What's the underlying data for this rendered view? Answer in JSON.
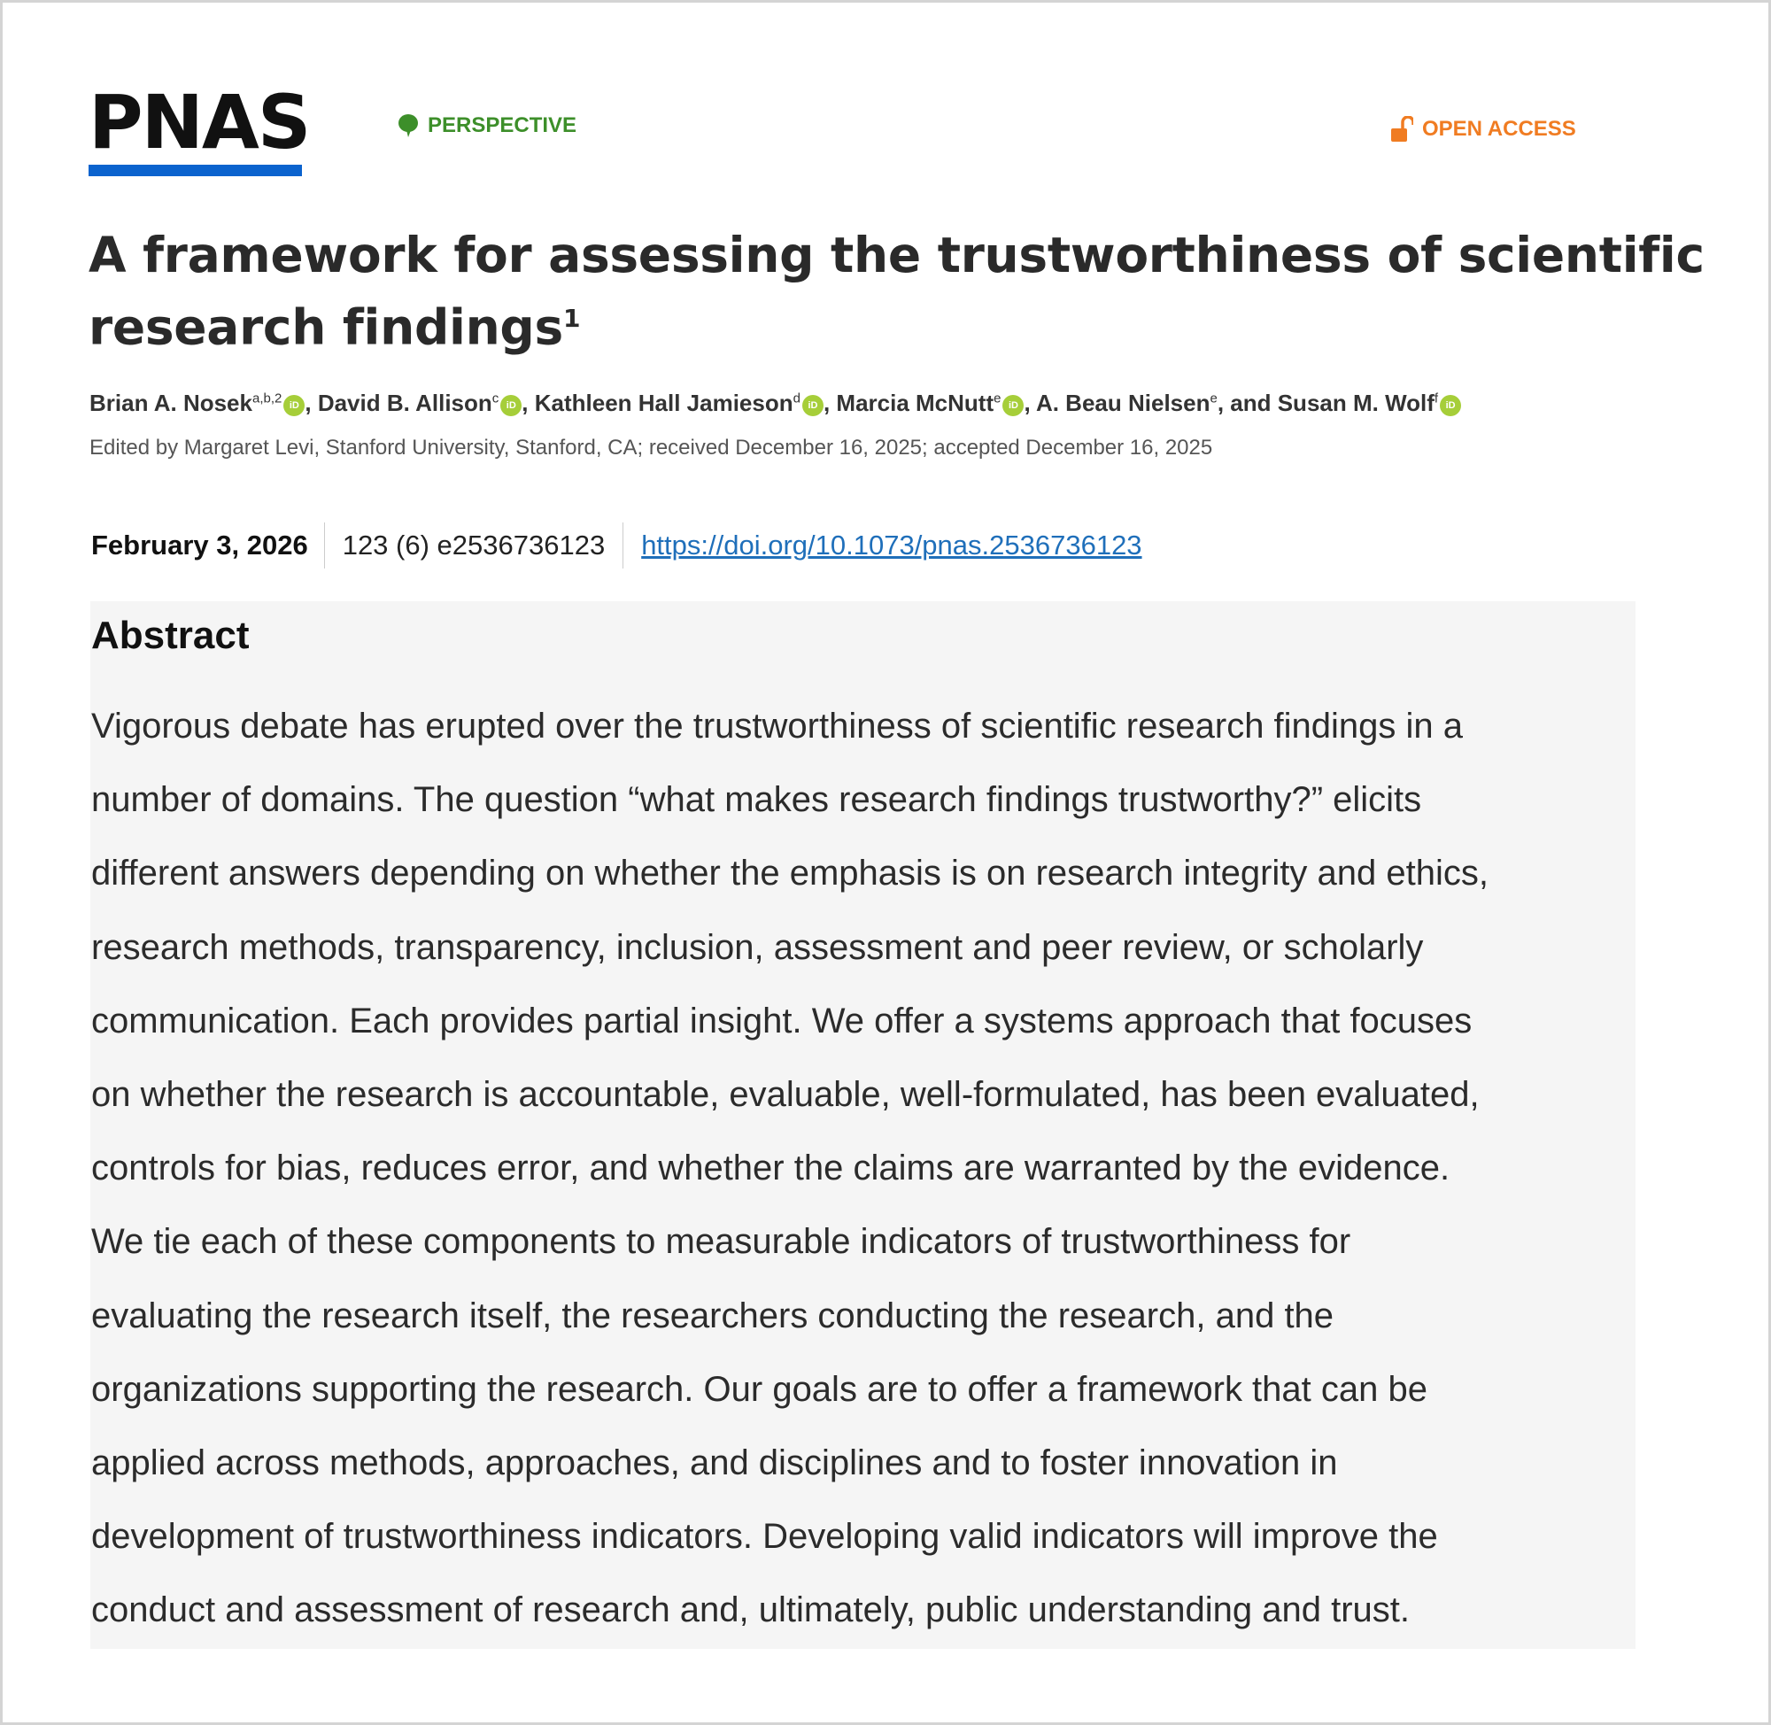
{
  "header": {
    "logo": "PNAS",
    "article_type": "PERSPECTIVE",
    "access": "OPEN ACCESS",
    "colors": {
      "brand_blue": "#0b63ce",
      "perspective_green": "#3d8f2a",
      "open_access_orange": "#f07c22",
      "orcid_green": "#a6ce39"
    }
  },
  "article": {
    "title": "A framework for assessing the trustworthiness of scientific research findings",
    "title_footnote": "1",
    "authors": [
      {
        "name": "Brian A. Nosek",
        "affil": "a,b,2",
        "sep": ", "
      },
      {
        "name": "David B. Allison",
        "affil": "c",
        "sep": ", "
      },
      {
        "name": "Kathleen Hall Jamieson",
        "affil": "d",
        "sep": ", "
      },
      {
        "name": "Marcia McNutt",
        "affil": "e",
        "sep": ", "
      },
      {
        "name": "A. Beau Nielsen",
        "affil": "e",
        "sep": ", and "
      },
      {
        "name": "Susan M. Wolf",
        "affil": "f",
        "sep": ""
      }
    ],
    "orcid_label": "iD",
    "edited_by": "Edited by Margaret Levi, Stanford University, Stanford, CA; received December 16, 2025; accepted December 16, 2025",
    "date": "February 3, 2026",
    "volume": "123 (6) e2536736123",
    "doi": "https://doi.org/10.1073/pnas.2536736123"
  },
  "abstract": {
    "heading": "Abstract",
    "lines": [
      "Vigorous debate has erupted over the trustworthiness of scientific research findings in a",
      "number of domains. The question “what makes research findings trustworthy?” elicits",
      "different answers depending on whether the emphasis is on research integrity and ethics,",
      "research methods, transparency, inclusion, assessment and peer review, or scholarly",
      "communication. Each provides partial insight. We offer a systems approach that focuses",
      "on whether the research is accountable, evaluable, well-formulated, has been evaluated,",
      "controls for bias, reduces error, and whether the claims are warranted by the evidence.",
      "We tie each of these components to measurable indicators of trustworthiness for",
      "evaluating the research itself, the researchers conducting the research, and the",
      "organizations supporting the research. Our goals are to offer a framework that can be",
      "applied across methods, approaches, and disciplines and to foster innovation in",
      "development of trustworthiness indicators. Developing valid indicators will improve the",
      "conduct and assessment of research and, ultimately, public understanding and trust."
    ]
  }
}
